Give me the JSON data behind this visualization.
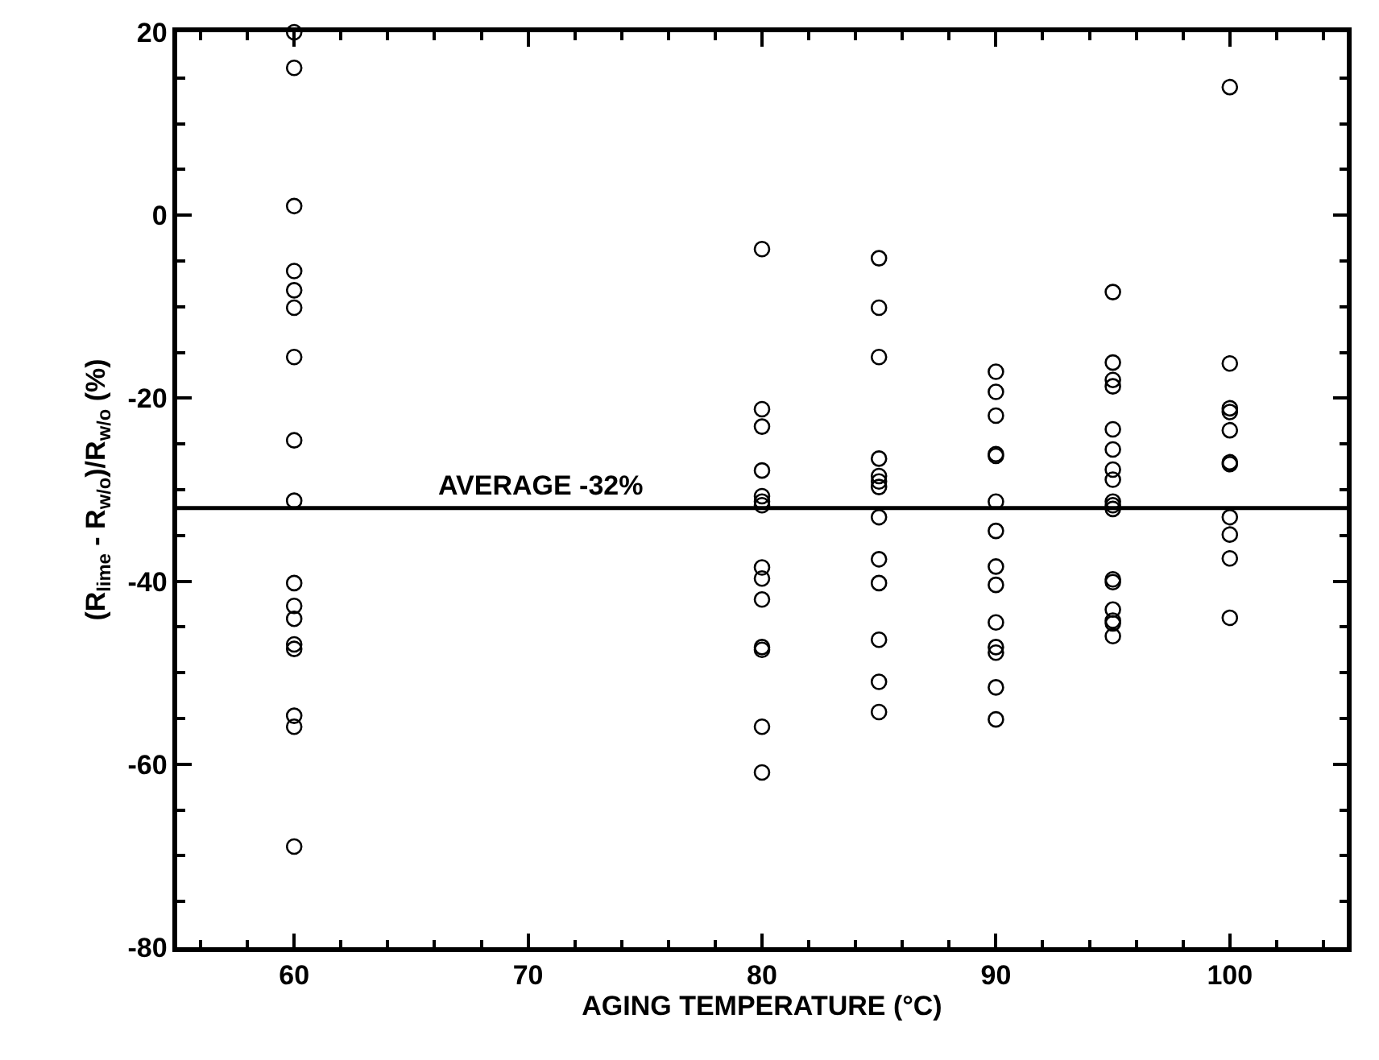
{
  "chart_data": {
    "type": "scatter",
    "xlabel": "AGING TEMPERATURE (°C)",
    "ylabel": "(R$_{lime}$ - R$_{w/o}$)/R$_{w/o}$ (%)",
    "xlim": [
      55,
      105
    ],
    "xticks": [
      60,
      70,
      80,
      90,
      100
    ],
    "ylim": [
      -80,
      20
    ],
    "yticks": [
      -80,
      -60,
      -40,
      -20,
      0,
      20
    ],
    "marker": "circle",
    "series": [
      {
        "color": "#000000",
        "x": [
          60,
          60,
          60,
          60,
          60,
          60,
          60,
          60,
          60,
          60,
          60,
          60,
          60,
          60,
          60,
          60,
          60
        ],
        "values": [
          20.0,
          16.1,
          1.0,
          -6.1,
          -8.2,
          -10.1,
          -15.5,
          -24.6,
          -31.2,
          -40.2,
          -42.7,
          -44.1,
          -46.9,
          -47.4,
          -54.7,
          -55.9,
          -69.0
        ]
      },
      {
        "color": "#000000",
        "x": [
          80,
          80,
          80,
          80,
          80,
          80,
          80,
          80,
          80,
          80,
          80,
          80,
          80,
          80
        ],
        "values": [
          -3.7,
          -21.2,
          -23.1,
          -27.9,
          -30.7,
          -31.3,
          -31.7,
          -38.5,
          -39.7,
          -42.0,
          -47.2,
          -47.5,
          -55.9,
          -60.9
        ]
      },
      {
        "color": "#000000",
        "x": [
          85,
          85,
          85,
          85,
          85,
          85,
          85,
          85,
          85,
          85,
          85,
          85,
          85
        ],
        "values": [
          -4.7,
          -10.1,
          -15.5,
          -26.6,
          -28.5,
          -29.1,
          -29.7,
          -33.0,
          -37.6,
          -40.2,
          -46.4,
          -51.0,
          -54.3
        ]
      },
      {
        "color": "#000000",
        "x": [
          90,
          90,
          90,
          90,
          90,
          90,
          90,
          90,
          90,
          90,
          90,
          90,
          90,
          90
        ],
        "values": [
          -17.1,
          -19.3,
          -21.9,
          -26.1,
          -26.3,
          -31.3,
          -34.5,
          -38.4,
          -40.4,
          -44.5,
          -47.2,
          -47.8,
          -51.6,
          -55.1
        ]
      },
      {
        "color": "#000000",
        "x": [
          95,
          95,
          95,
          95,
          95,
          95,
          95,
          95,
          95,
          95,
          95,
          95,
          95,
          95,
          95,
          95,
          95
        ],
        "values": [
          -8.4,
          -16.1,
          -18.0,
          -18.7,
          -23.4,
          -25.6,
          -27.8,
          -28.9,
          -31.3,
          -31.7,
          -32.1,
          -39.8,
          -40.1,
          -43.1,
          -44.3,
          -44.6,
          -46.0
        ]
      },
      {
        "color": "#000000",
        "x": [
          100,
          100,
          100,
          100,
          100,
          100,
          100,
          100,
          100,
          100,
          100
        ],
        "values": [
          14,
          -16.2,
          -21.1,
          -21.5,
          -23.5,
          -27.0,
          -27.2,
          -33.0,
          -34.9,
          -37.5,
          -44.0
        ]
      }
    ],
    "ref_lines": [
      {
        "axis": "y",
        "value": -32,
        "label": "AVERAGE -32%",
        "color": "#000000",
        "line_style": "solid"
      }
    ]
  }
}
